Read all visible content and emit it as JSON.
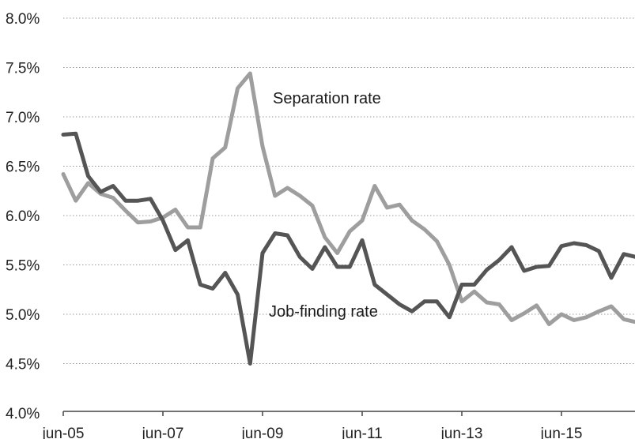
{
  "chart_data": {
    "type": "line",
    "x_tick_labels": [
      "jun-05",
      "jun-07",
      "jun-09",
      "jun-11",
      "jun-13",
      "jun-15"
    ],
    "y_tick_labels": [
      "4.0%",
      "4.5%",
      "5.0%",
      "5.5%",
      "6.0%",
      "6.5%",
      "7.0%",
      "7.5%",
      "8.0%"
    ],
    "ylim": [
      4.0,
      8.0
    ],
    "grid": true,
    "annotations": [
      {
        "text": "Separation rate",
        "series": "separation"
      },
      {
        "text": "Job-finding rate",
        "series": "job_finding"
      }
    ],
    "series": [
      {
        "id": "separation",
        "color": "#9e9e9e",
        "points": [
          [
            "2005-06",
            6.42
          ],
          [
            "2005-09",
            6.15
          ],
          [
            "2005-12",
            6.33
          ],
          [
            "2006-03",
            6.22
          ],
          [
            "2006-06",
            6.18
          ],
          [
            "2006-09",
            6.05
          ],
          [
            "2006-12",
            5.93
          ],
          [
            "2007-03",
            5.94
          ],
          [
            "2007-06",
            5.98
          ],
          [
            "2007-09",
            6.06
          ],
          [
            "2007-12",
            5.88
          ],
          [
            "2008-03",
            5.88
          ],
          [
            "2008-06",
            6.58
          ],
          [
            "2008-09",
            6.69
          ],
          [
            "2008-12",
            7.29
          ],
          [
            "2009-03",
            7.44
          ],
          [
            "2009-06",
            6.7
          ],
          [
            "2009-09",
            6.2
          ],
          [
            "2009-12",
            6.28
          ],
          [
            "2010-03",
            6.2
          ],
          [
            "2010-06",
            6.1
          ],
          [
            "2010-09",
            5.78
          ],
          [
            "2010-12",
            5.62
          ],
          [
            "2011-03",
            5.84
          ],
          [
            "2011-06",
            5.95
          ],
          [
            "2011-09",
            6.3
          ],
          [
            "2011-12",
            6.08
          ],
          [
            "2012-03",
            6.11
          ],
          [
            "2012-06",
            5.95
          ],
          [
            "2012-09",
            5.86
          ],
          [
            "2012-12",
            5.74
          ],
          [
            "2013-03",
            5.5
          ],
          [
            "2013-06",
            5.13
          ],
          [
            "2013-09",
            5.23
          ],
          [
            "2013-12",
            5.12
          ],
          [
            "2014-03",
            5.1
          ],
          [
            "2014-06",
            4.94
          ],
          [
            "2014-09",
            5.01
          ],
          [
            "2014-12",
            5.09
          ],
          [
            "2015-03",
            4.9
          ],
          [
            "2015-06",
            5.0
          ],
          [
            "2015-09",
            4.94
          ],
          [
            "2015-12",
            4.97
          ],
          [
            "2016-03",
            5.03
          ],
          [
            "2016-06",
            5.08
          ],
          [
            "2016-09",
            4.95
          ],
          [
            "2016-12",
            4.92
          ]
        ]
      },
      {
        "id": "job_finding",
        "color": "#555555",
        "points": [
          [
            "2005-06",
            6.82
          ],
          [
            "2005-09",
            6.83
          ],
          [
            "2005-12",
            6.4
          ],
          [
            "2006-03",
            6.24
          ],
          [
            "2006-06",
            6.3
          ],
          [
            "2006-09",
            6.15
          ],
          [
            "2006-12",
            6.15
          ],
          [
            "2007-03",
            6.17
          ],
          [
            "2007-06",
            5.95
          ],
          [
            "2007-09",
            5.65
          ],
          [
            "2007-12",
            5.75
          ],
          [
            "2008-03",
            5.3
          ],
          [
            "2008-06",
            5.26
          ],
          [
            "2008-09",
            5.42
          ],
          [
            "2008-12",
            5.2
          ],
          [
            "2009-03",
            4.5
          ],
          [
            "2009-06",
            5.62
          ],
          [
            "2009-09",
            5.82
          ],
          [
            "2009-12",
            5.8
          ],
          [
            "2010-03",
            5.58
          ],
          [
            "2010-06",
            5.46
          ],
          [
            "2010-09",
            5.68
          ],
          [
            "2010-12",
            5.48
          ],
          [
            "2011-03",
            5.48
          ],
          [
            "2011-06",
            5.75
          ],
          [
            "2011-09",
            5.3
          ],
          [
            "2011-12",
            5.2
          ],
          [
            "2012-03",
            5.1
          ],
          [
            "2012-06",
            5.03
          ],
          [
            "2012-09",
            5.13
          ],
          [
            "2012-12",
            5.13
          ],
          [
            "2013-03",
            4.97
          ],
          [
            "2013-06",
            5.3
          ],
          [
            "2013-09",
            5.3
          ],
          [
            "2013-12",
            5.45
          ],
          [
            "2014-03",
            5.55
          ],
          [
            "2014-06",
            5.68
          ],
          [
            "2014-09",
            5.44
          ],
          [
            "2014-12",
            5.48
          ],
          [
            "2015-03",
            5.49
          ],
          [
            "2015-06",
            5.69
          ],
          [
            "2015-09",
            5.72
          ],
          [
            "2015-12",
            5.7
          ],
          [
            "2016-03",
            5.64
          ],
          [
            "2016-06",
            5.37
          ],
          [
            "2016-09",
            5.61
          ],
          [
            "2016-12",
            5.58
          ]
        ]
      }
    ]
  }
}
